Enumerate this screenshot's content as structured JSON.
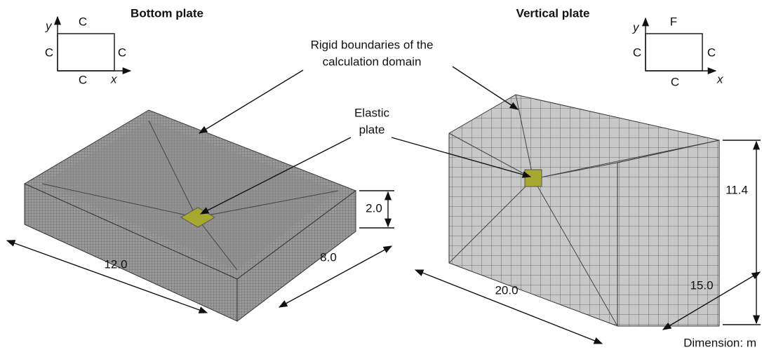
{
  "panels": [
    {
      "title": "Bottom plate",
      "boundary": {
        "axis_y": "y",
        "axis_x": "x",
        "top": "C",
        "left": "C",
        "right": "C",
        "bottom": "C"
      },
      "dimensions": {
        "height": "2.0",
        "length": "12.0",
        "width": "8.0"
      }
    },
    {
      "title": "Vertical plate",
      "boundary": {
        "axis_y": "y",
        "axis_x": "x",
        "top": "F",
        "left": "C",
        "right": "C",
        "bottom": "C"
      },
      "dimensions": {
        "height": "11.4",
        "length": "20.0",
        "width": "15.0"
      }
    }
  ],
  "annotations": {
    "rigid": [
      "Rigid boundaries of the",
      "calculation domain"
    ],
    "elastic": [
      "Elastic",
      "plate"
    ]
  },
  "units": "Dimension: m"
}
